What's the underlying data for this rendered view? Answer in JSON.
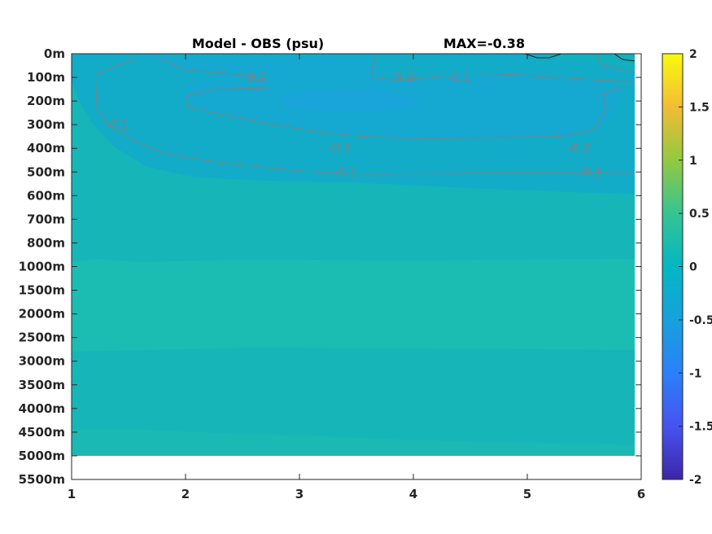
{
  "chart_data": {
    "type": "heatmap",
    "title": "Model - OBS (psu)",
    "annotation": "MAX=-0.38",
    "xlabel": "",
    "ylabel": "",
    "x_ticks": [
      "1",
      "2",
      "3",
      "4",
      "5",
      "6"
    ],
    "xlim": [
      1,
      6
    ],
    "y_ticks": [
      "0m",
      "100m",
      "200m",
      "300m",
      "400m",
      "500m",
      "600m",
      "700m",
      "800m",
      "1000m",
      "1500m",
      "2000m",
      "2500m",
      "3000m",
      "3500m",
      "4000m",
      "4500m",
      "5000m",
      "5500m"
    ],
    "data_bottom_depth": "5000m",
    "colorbar": {
      "ticks": [
        "2",
        "1.5",
        "1",
        "0.5",
        "0",
        "-0.5",
        "-1",
        "-1.5",
        "-2"
      ],
      "range": [
        -2,
        2
      ],
      "colormap": "parula"
    },
    "contour_labels": [
      {
        "text": "-0.2",
        "x": 2.6,
        "depth": "100m"
      },
      {
        "text": "-0.2",
        "x": 3.9,
        "depth": "100m"
      },
      {
        "text": "-0.1",
        "x": 4.4,
        "depth": "100m"
      },
      {
        "text": "-0.1",
        "x": 1.4,
        "depth": "300m"
      },
      {
        "text": "-0.2",
        "x": 3.35,
        "depth": "400m"
      },
      {
        "text": "-0.2",
        "x": 5.45,
        "depth": "400m"
      },
      {
        "text": "-0.1",
        "x": 3.4,
        "depth": "500m"
      },
      {
        "text": "-0.1",
        "x": 5.55,
        "depth": "500m"
      }
    ],
    "grid": false
  },
  "colors": {
    "background": "#ffffff",
    "field_base": "#16b5b8",
    "field_upper": "#12acc8",
    "field_core": "#17a6d8",
    "field_deep_band": "#1bbdb2",
    "contour": "#808080"
  }
}
